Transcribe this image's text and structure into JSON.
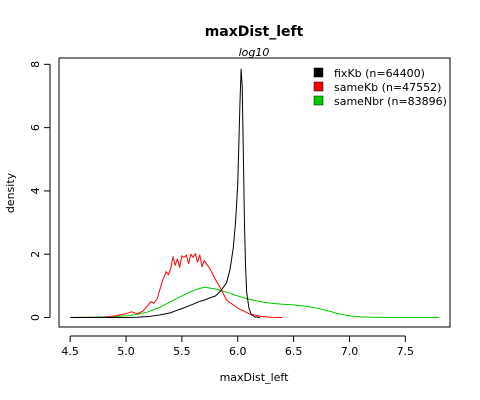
{
  "chart_data": {
    "type": "line",
    "title": "maxDist_left",
    "subtitle": "log10",
    "xlabel": "maxDist_left",
    "ylabel": "density",
    "xlim": [
      4.4,
      7.9
    ],
    "ylim": [
      -0.3,
      8.2
    ],
    "x_ticks": [
      4.5,
      5.0,
      5.5,
      6.0,
      6.5,
      7.0,
      7.5
    ],
    "x_tick_labels": [
      "4.5",
      "5.0",
      "5.5",
      "6.0",
      "6.5",
      "7.0",
      "7.5"
    ],
    "y_ticks": [
      0,
      2,
      4,
      6,
      8
    ],
    "y_tick_labels": [
      "0",
      "2",
      "4",
      "6",
      "8"
    ],
    "legend_position": "top-right",
    "series": [
      {
        "name": "fixKb (n=64400)",
        "color": "#000000",
        "x": [
          4.5,
          4.8,
          5.0,
          5.1,
          5.2,
          5.3,
          5.4,
          5.45,
          5.5,
          5.55,
          5.6,
          5.65,
          5.7,
          5.75,
          5.8,
          5.85,
          5.9,
          5.93,
          5.96,
          5.98,
          6.0,
          6.01,
          6.02,
          6.03,
          6.04,
          6.05,
          6.06,
          6.07,
          6.08,
          6.1,
          6.12,
          6.15,
          6.2
        ],
        "values": [
          0,
          0,
          0,
          0.01,
          0.03,
          0.08,
          0.15,
          0.22,
          0.28,
          0.35,
          0.42,
          0.5,
          0.55,
          0.62,
          0.68,
          0.85,
          1.1,
          1.5,
          2.2,
          3.0,
          4.2,
          5.5,
          6.8,
          7.85,
          7.3,
          5.2,
          3.0,
          1.6,
          0.8,
          0.3,
          0.1,
          0.02,
          0
        ],
        "line_width": 1
      },
      {
        "name": "sameKb (n=47552)",
        "color": "#ff0000",
        "x": [
          4.5,
          4.8,
          4.9,
          5.0,
          5.05,
          5.1,
          5.15,
          5.2,
          5.22,
          5.25,
          5.28,
          5.3,
          5.33,
          5.36,
          5.38,
          5.4,
          5.42,
          5.44,
          5.46,
          5.48,
          5.5,
          5.52,
          5.54,
          5.56,
          5.58,
          5.6,
          5.62,
          5.64,
          5.66,
          5.68,
          5.7,
          5.75,
          5.8,
          5.85,
          5.9,
          6.0,
          6.1,
          6.2,
          6.3,
          6.4
        ],
        "values": [
          0,
          0.01,
          0.05,
          0.12,
          0.18,
          0.12,
          0.2,
          0.4,
          0.5,
          0.45,
          0.6,
          0.85,
          1.2,
          1.45,
          1.35,
          1.55,
          1.92,
          1.65,
          1.85,
          1.58,
          1.95,
          1.9,
          1.97,
          1.7,
          2.0,
          1.9,
          2.02,
          1.75,
          1.98,
          1.6,
          1.8,
          1.55,
          1.2,
          0.9,
          0.55,
          0.3,
          0.12,
          0.04,
          0.01,
          0
        ],
        "line_width": 1
      },
      {
        "name": "sameNbr (n=83896)",
        "color": "#00cc00",
        "x": [
          4.5,
          4.7,
          4.9,
          5.0,
          5.1,
          5.2,
          5.3,
          5.4,
          5.5,
          5.6,
          5.7,
          5.8,
          5.9,
          6.0,
          6.1,
          6.2,
          6.3,
          6.4,
          6.5,
          6.6,
          6.7,
          6.8,
          6.9,
          7.0,
          7.1,
          7.2,
          7.4,
          7.6,
          7.8
        ],
        "values": [
          0,
          0.01,
          0.03,
          0.05,
          0.1,
          0.18,
          0.32,
          0.5,
          0.68,
          0.85,
          0.96,
          0.9,
          0.8,
          0.68,
          0.58,
          0.5,
          0.45,
          0.42,
          0.4,
          0.36,
          0.3,
          0.22,
          0.12,
          0.05,
          0.02,
          0.01,
          0,
          0,
          0
        ],
        "line_width": 1
      }
    ],
    "grid": false
  }
}
